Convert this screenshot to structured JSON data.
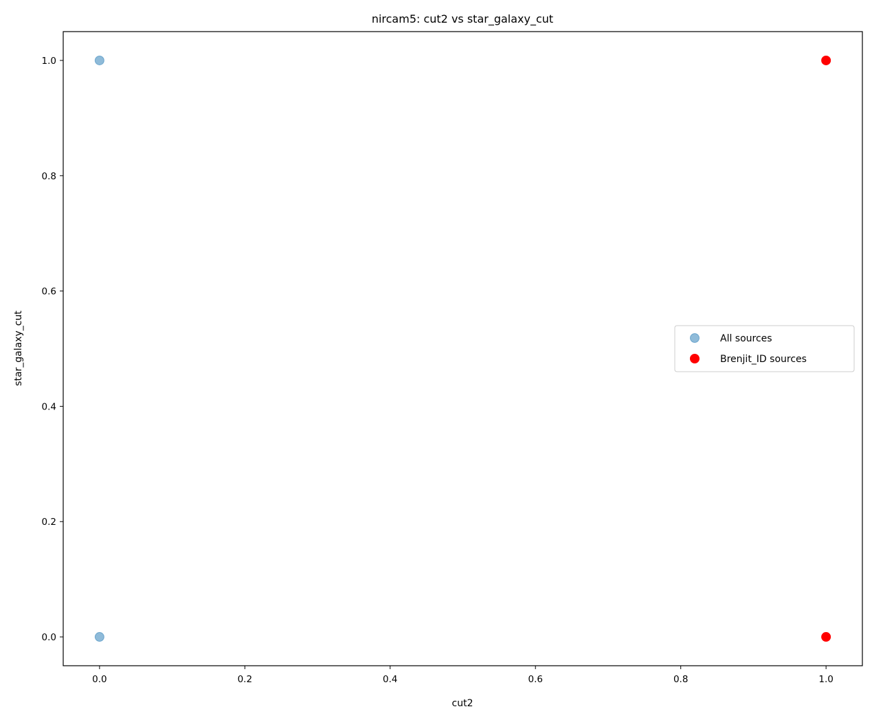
{
  "chart_data": {
    "type": "scatter",
    "title": "nircam5: cut2 vs star_galaxy_cut",
    "xlabel": "cut2",
    "ylabel": "star_galaxy_cut",
    "xlim": [
      -0.05,
      1.05
    ],
    "ylim": [
      -0.05,
      1.05
    ],
    "xticks": [
      0.0,
      0.2,
      0.4,
      0.6,
      0.8,
      1.0
    ],
    "yticks": [
      0.0,
      0.2,
      0.4,
      0.6,
      0.8,
      1.0
    ],
    "xtick_labels": [
      "0.0",
      "0.2",
      "0.4",
      "0.6",
      "0.8",
      "1.0"
    ],
    "ytick_labels": [
      "0.0",
      "0.2",
      "0.4",
      "0.6",
      "0.8",
      "1.0"
    ],
    "grid": false,
    "legend_position": "center-right",
    "series": [
      {
        "name": "All sources",
        "color": "#1f77b4",
        "alpha": 0.5,
        "points": [
          {
            "x": 0.0,
            "y": 1.0
          },
          {
            "x": 0.0,
            "y": 0.0
          }
        ]
      },
      {
        "name": "Brenjit_ID sources",
        "color": "#ff0000",
        "alpha": 1.0,
        "points": [
          {
            "x": 1.0,
            "y": 1.0
          },
          {
            "x": 1.0,
            "y": 0.0
          }
        ]
      }
    ]
  }
}
